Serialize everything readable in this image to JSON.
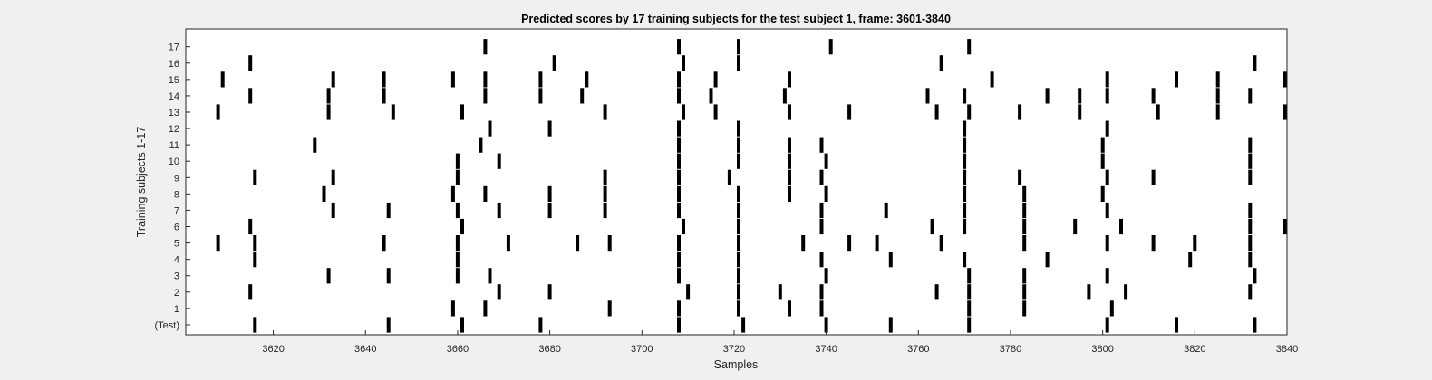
{
  "chart_data": {
    "type": "raster",
    "title": "Predicted scores by 17 training subjects for the test subject 1, frame: 3601-3840",
    "xlabel": "Samples",
    "ylabel": "Training subjects 1-17",
    "xlim": [
      3601,
      3840
    ],
    "xticks": [
      3620,
      3640,
      3660,
      3680,
      3700,
      3720,
      3740,
      3760,
      3780,
      3800,
      3820,
      3840
    ],
    "yticks": [
      "(Test)",
      "1",
      "2",
      "3",
      "4",
      "5",
      "6",
      "7",
      "8",
      "9",
      "10",
      "11",
      "12",
      "13",
      "14",
      "15",
      "16",
      "17"
    ],
    "grid": false,
    "colors": {
      "mark": "#000000",
      "plot_bg": "#ffffff",
      "figure_bg": "#f0f0f0"
    },
    "rows": [
      {
        "label": "(Test)",
        "events": [
          3616,
          3645,
          3661,
          3678,
          3708,
          3722,
          3740,
          3754,
          3771,
          3801,
          3816,
          3833
        ]
      },
      {
        "label": "1",
        "events": [
          3659,
          3666,
          3693,
          3708,
          3721,
          3732,
          3739,
          3771,
          3783,
          3802
        ]
      },
      {
        "label": "2",
        "events": [
          3615,
          3669,
          3680,
          3710,
          3721,
          3730,
          3739,
          3764,
          3771,
          3783,
          3797,
          3805,
          3832
        ]
      },
      {
        "label": "3",
        "events": [
          3632,
          3645,
          3667,
          3660,
          3708,
          3721,
          3740,
          3771,
          3783,
          3801,
          3833
        ]
      },
      {
        "label": "4",
        "events": [
          3616,
          3660,
          3708,
          3721,
          3739,
          3754,
          3770,
          3788,
          3819,
          3832
        ]
      },
      {
        "label": "5",
        "events": [
          3608,
          3616,
          3644,
          3660,
          3671,
          3686,
          3693,
          3708,
          3721,
          3735,
          3745,
          3751,
          3765,
          3783,
          3801,
          3811,
          3820,
          3832
        ]
      },
      {
        "label": "6",
        "events": [
          3615,
          3661,
          3709,
          3721,
          3739,
          3763,
          3770,
          3783,
          3794,
          3804,
          3832,
          3840
        ]
      },
      {
        "label": "7",
        "events": [
          3633,
          3645,
          3660,
          3669,
          3680,
          3692,
          3708,
          3721,
          3739,
          3753,
          3770,
          3783,
          3801,
          3832
        ]
      },
      {
        "label": "8",
        "events": [
          3631,
          3659,
          3666,
          3680,
          3692,
          3708,
          3721,
          3732,
          3740,
          3770,
          3783,
          3800
        ]
      },
      {
        "label": "9",
        "events": [
          3616,
          3633,
          3660,
          3692,
          3708,
          3719,
          3732,
          3739,
          3770,
          3782,
          3801,
          3811,
          3832
        ]
      },
      {
        "label": "10",
        "events": [
          3660,
          3669,
          3708,
          3721,
          3732,
          3740,
          3770,
          3800,
          3832
        ]
      },
      {
        "label": "11",
        "events": [
          3629,
          3665,
          3708,
          3721,
          3732,
          3739,
          3770,
          3800,
          3832
        ]
      },
      {
        "label": "12",
        "events": [
          3667,
          3680,
          3708,
          3721,
          3770,
          3801
        ]
      },
      {
        "label": "13",
        "events": [
          3608,
          3632,
          3646,
          3661,
          3692,
          3709,
          3716,
          3732,
          3745,
          3764,
          3771,
          3782,
          3795,
          3812,
          3825,
          3840
        ]
      },
      {
        "label": "14",
        "events": [
          3615,
          3632,
          3644,
          3666,
          3678,
          3687,
          3708,
          3715,
          3731,
          3762,
          3770,
          3788,
          3795,
          3801,
          3811,
          3825,
          3832
        ]
      },
      {
        "label": "15",
        "events": [
          3609,
          3633,
          3644,
          3659,
          3666,
          3678,
          3688,
          3708,
          3716,
          3732,
          3776,
          3801,
          3816,
          3825,
          3840
        ]
      },
      {
        "label": "16",
        "events": [
          3615,
          3681,
          3709,
          3721,
          3765,
          3833
        ]
      },
      {
        "label": "17",
        "events": [
          3666,
          3708,
          3721,
          3741,
          3771
        ]
      }
    ]
  }
}
